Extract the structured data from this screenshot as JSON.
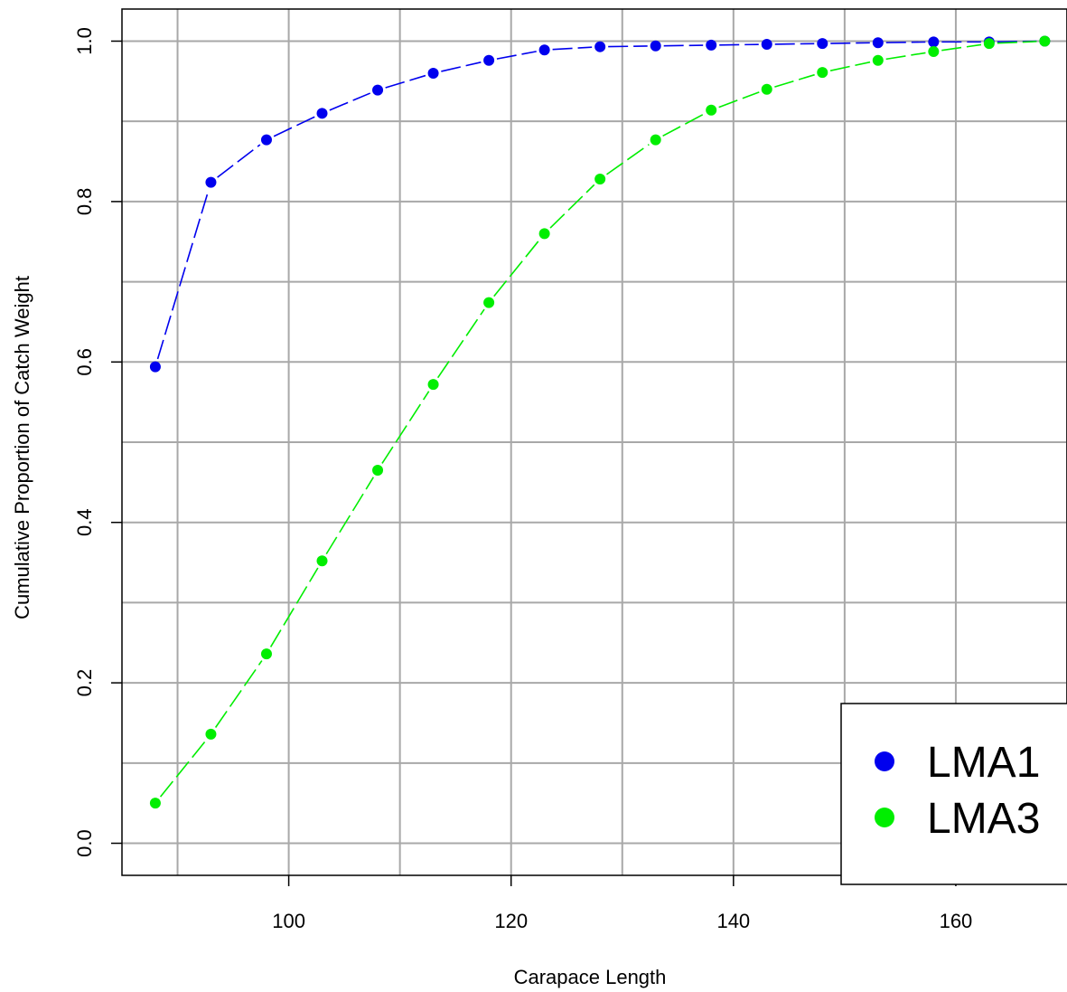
{
  "chart_data": {
    "type": "line",
    "title": "",
    "xlabel": "Carapace Length",
    "ylabel": "Cumulative Proportion of Catch Weight",
    "xlim": [
      85,
      170
    ],
    "ylim": [
      -0.04,
      1.04
    ],
    "xticks": [
      100,
      120,
      140,
      160
    ],
    "yticks": [
      0.0,
      0.2,
      0.4,
      0.6,
      0.8,
      1.0
    ],
    "ytick_labels": [
      "0.0",
      "0.2",
      "0.4",
      "0.6",
      "0.8",
      "1.0"
    ],
    "xgrid": [
      90,
      100,
      110,
      120,
      130,
      140,
      150,
      160,
      170
    ],
    "ygrid": [
      0.0,
      0.1,
      0.2,
      0.3,
      0.4,
      0.5,
      0.6,
      0.7,
      0.8,
      0.9,
      1.0
    ],
    "grid": true,
    "legend_position": "bottom-right",
    "x": [
      88,
      93,
      98,
      103,
      108,
      113,
      118,
      123,
      128,
      133,
      138,
      143,
      148,
      153,
      158,
      163,
      168
    ],
    "series": [
      {
        "name": "LMA1",
        "color": "#0000ee",
        "values": [
          0.594,
          0.824,
          0.877,
          0.91,
          0.939,
          0.96,
          0.976,
          0.989,
          0.993,
          0.994,
          0.995,
          0.996,
          0.997,
          0.998,
          0.999,
          0.999,
          1.0
        ]
      },
      {
        "name": "LMA3",
        "color": "#00ee00",
        "values": [
          0.05,
          0.136,
          0.236,
          0.352,
          0.465,
          0.572,
          0.674,
          0.76,
          0.828,
          0.877,
          0.914,
          0.94,
          0.961,
          0.976,
          0.987,
          0.997,
          1.0
        ]
      }
    ]
  }
}
